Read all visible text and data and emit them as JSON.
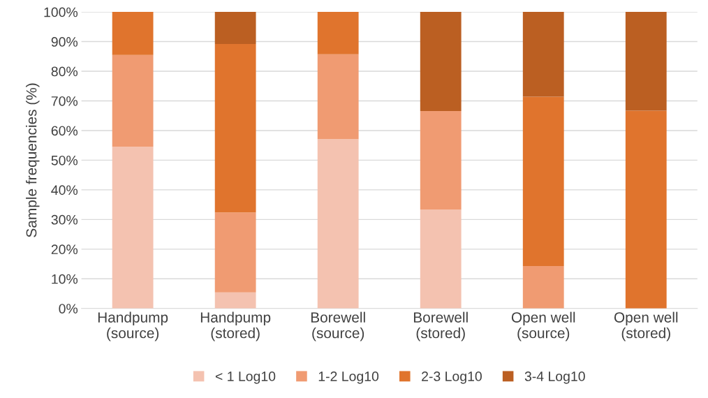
{
  "chart_data": {
    "type": "bar",
    "stacked": true,
    "ylabel": "Sample frequencies (%)",
    "categories": [
      "Handpump\n(source)",
      "Handpump\n(stored)",
      "Borewell\n(source)",
      "Borewell\n(stored)",
      "Open well\n(source)",
      "Open well\n(stored)"
    ],
    "series": [
      {
        "name": "< 1 Log10",
        "color": "#f4c2b0",
        "values": [
          54.5,
          5.4,
          57.1,
          33.3,
          0,
          0
        ]
      },
      {
        "name": "1-2 Log10",
        "color": "#f09b72",
        "values": [
          31.0,
          27.0,
          28.6,
          33.3,
          14.3,
          0
        ]
      },
      {
        "name": "2-3 Log10",
        "color": "#e0742d",
        "values": [
          14.5,
          56.8,
          14.3,
          0,
          57.1,
          66.7
        ]
      },
      {
        "name": "3-4 Log10",
        "color": "#bb5f22",
        "values": [
          0,
          10.8,
          0,
          33.4,
          28.6,
          33.3
        ]
      }
    ],
    "ylim": [
      0,
      100
    ],
    "yticks": [
      {
        "value": 0,
        "label": "0%"
      },
      {
        "value": 10,
        "label": "10%"
      },
      {
        "value": 20,
        "label": "20%"
      },
      {
        "value": 30,
        "label": "30%"
      },
      {
        "value": 40,
        "label": "40%"
      },
      {
        "value": 50,
        "label": "50%"
      },
      {
        "value": 60,
        "label": "60%"
      },
      {
        "value": 70,
        "label": "70%"
      },
      {
        "value": 80,
        "label": "80%"
      },
      {
        "value": 90,
        "label": "90%"
      },
      {
        "value": 100,
        "label": "100%"
      }
    ],
    "grid": "y",
    "legend": "bottom"
  }
}
